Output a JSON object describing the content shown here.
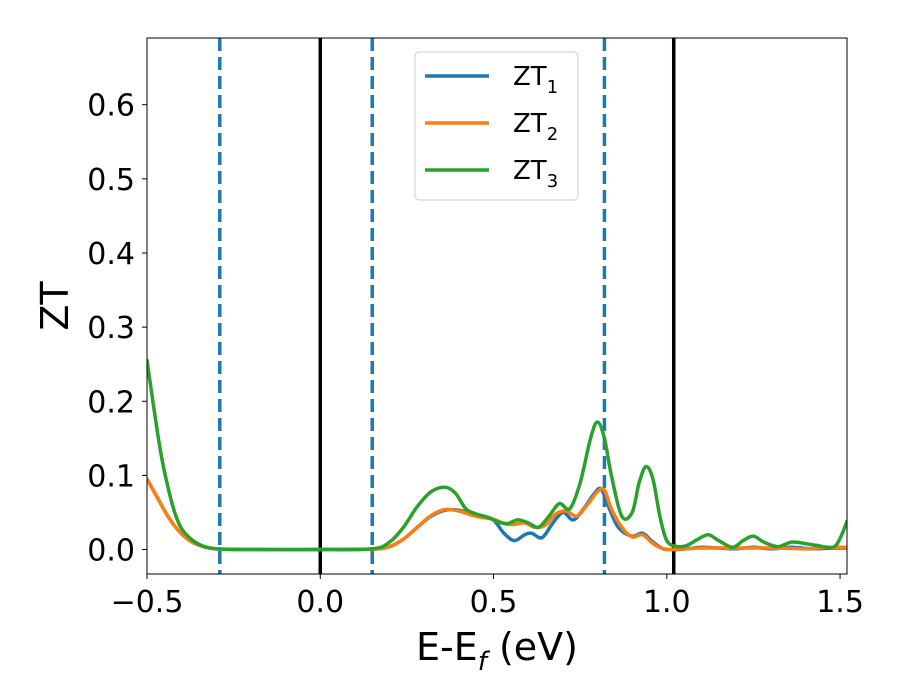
{
  "chart_data": {
    "type": "line",
    "xlabel_main": "E-E",
    "xlabel_sub": "f",
    "xlabel_unit": " (eV)",
    "ylabel": "ZT",
    "xlim": [
      -0.5,
      1.52
    ],
    "ylim": [
      -0.033,
      0.69
    ],
    "x_ticks": [
      -0.5,
      0.0,
      0.5,
      1.0,
      1.5
    ],
    "x_tick_labels": [
      "−0.5",
      "0.0",
      "0.5",
      "1.0",
      "1.5"
    ],
    "y_ticks": [
      0.0,
      0.1,
      0.2,
      0.3,
      0.4,
      0.5,
      0.6
    ],
    "y_tick_labels": [
      "0.0",
      "0.1",
      "0.2",
      "0.3",
      "0.4",
      "0.5",
      "0.6"
    ],
    "grid": false,
    "legend_placement": "top-center",
    "vlines": [
      {
        "x": -0.29,
        "style": "dashed",
        "color": "#1f77b4"
      },
      {
        "x": 0.0,
        "style": "solid",
        "color": "#000000"
      },
      {
        "x": 0.15,
        "style": "dashed",
        "color": "#1f77b4"
      },
      {
        "x": 0.82,
        "style": "dashed",
        "color": "#1f77b4"
      },
      {
        "x": 1.02,
        "style": "solid",
        "color": "#000000"
      }
    ],
    "series": [
      {
        "name_main": "ZT",
        "name_sub": "1",
        "color": "#1f77b4",
        "points": [
          [
            -0.5,
            0.095
          ],
          [
            -0.47,
            0.07
          ],
          [
            -0.44,
            0.045
          ],
          [
            -0.41,
            0.026
          ],
          [
            -0.38,
            0.013
          ],
          [
            -0.35,
            0.006
          ],
          [
            -0.32,
            0.002
          ],
          [
            -0.28,
            0.0005
          ],
          [
            -0.2,
            0.0
          ],
          [
            0.0,
            0.0
          ],
          [
            0.15,
            0.0005
          ],
          [
            0.2,
            0.004
          ],
          [
            0.24,
            0.014
          ],
          [
            0.28,
            0.03
          ],
          [
            0.32,
            0.045
          ],
          [
            0.36,
            0.053
          ],
          [
            0.4,
            0.053
          ],
          [
            0.44,
            0.048
          ],
          [
            0.47,
            0.045
          ],
          [
            0.5,
            0.04
          ],
          [
            0.53,
            0.022
          ],
          [
            0.56,
            0.012
          ],
          [
            0.59,
            0.02
          ],
          [
            0.61,
            0.022
          ],
          [
            0.64,
            0.016
          ],
          [
            0.67,
            0.035
          ],
          [
            0.7,
            0.05
          ],
          [
            0.73,
            0.04
          ],
          [
            0.76,
            0.055
          ],
          [
            0.79,
            0.075
          ],
          [
            0.81,
            0.082
          ],
          [
            0.83,
            0.06
          ],
          [
            0.86,
            0.03
          ],
          [
            0.9,
            0.018
          ],
          [
            0.93,
            0.022
          ],
          [
            0.96,
            0.01
          ],
          [
            0.99,
            0.001
          ],
          [
            1.02,
            0.0
          ],
          [
            1.06,
            0.001
          ],
          [
            1.1,
            0.003
          ],
          [
            1.15,
            0.002
          ],
          [
            1.2,
            0.001
          ],
          [
            1.25,
            0.003
          ],
          [
            1.3,
            0.001
          ],
          [
            1.36,
            0.003
          ],
          [
            1.42,
            0.001
          ],
          [
            1.48,
            0.002
          ],
          [
            1.52,
            0.002
          ]
        ]
      },
      {
        "name_main": "ZT",
        "name_sub": "2",
        "color": "#ff7f0e",
        "points": [
          [
            -0.5,
            0.095
          ],
          [
            -0.47,
            0.07
          ],
          [
            -0.44,
            0.045
          ],
          [
            -0.41,
            0.026
          ],
          [
            -0.38,
            0.013
          ],
          [
            -0.35,
            0.006
          ],
          [
            -0.32,
            0.002
          ],
          [
            -0.28,
            0.0005
          ],
          [
            -0.2,
            0.0
          ],
          [
            0.0,
            0.0
          ],
          [
            0.15,
            0.0005
          ],
          [
            0.2,
            0.004
          ],
          [
            0.24,
            0.014
          ],
          [
            0.28,
            0.03
          ],
          [
            0.32,
            0.046
          ],
          [
            0.36,
            0.054
          ],
          [
            0.4,
            0.052
          ],
          [
            0.44,
            0.046
          ],
          [
            0.47,
            0.043
          ],
          [
            0.5,
            0.041
          ],
          [
            0.53,
            0.035
          ],
          [
            0.56,
            0.034
          ],
          [
            0.59,
            0.036
          ],
          [
            0.62,
            0.03
          ],
          [
            0.65,
            0.033
          ],
          [
            0.68,
            0.048
          ],
          [
            0.71,
            0.052
          ],
          [
            0.74,
            0.045
          ],
          [
            0.77,
            0.06
          ],
          [
            0.8,
            0.078
          ],
          [
            0.82,
            0.08
          ],
          [
            0.84,
            0.055
          ],
          [
            0.87,
            0.03
          ],
          [
            0.9,
            0.017
          ],
          [
            0.93,
            0.02
          ],
          [
            0.96,
            0.008
          ],
          [
            0.99,
            0.001
          ],
          [
            1.02,
            0.0
          ],
          [
            1.1,
            0.002
          ],
          [
            1.2,
            0.002
          ],
          [
            1.3,
            0.002
          ],
          [
            1.4,
            0.001
          ],
          [
            1.46,
            0.003
          ],
          [
            1.52,
            0.003
          ]
        ]
      },
      {
        "name_main": "ZT",
        "name_sub": "3",
        "color": "#2ca02c",
        "points": [
          [
            -0.5,
            0.255
          ],
          [
            -0.48,
            0.19
          ],
          [
            -0.46,
            0.13
          ],
          [
            -0.44,
            0.085
          ],
          [
            -0.42,
            0.05
          ],
          [
            -0.4,
            0.028
          ],
          [
            -0.37,
            0.013
          ],
          [
            -0.34,
            0.005
          ],
          [
            -0.31,
            0.0015
          ],
          [
            -0.28,
            0.0004
          ],
          [
            -0.2,
            0.0
          ],
          [
            0.0,
            0.0
          ],
          [
            0.15,
            0.001
          ],
          [
            0.2,
            0.01
          ],
          [
            0.24,
            0.03
          ],
          [
            0.28,
            0.058
          ],
          [
            0.32,
            0.078
          ],
          [
            0.36,
            0.084
          ],
          [
            0.39,
            0.076
          ],
          [
            0.42,
            0.055
          ],
          [
            0.45,
            0.048
          ],
          [
            0.48,
            0.044
          ],
          [
            0.51,
            0.038
          ],
          [
            0.54,
            0.035
          ],
          [
            0.57,
            0.04
          ],
          [
            0.6,
            0.036
          ],
          [
            0.63,
            0.03
          ],
          [
            0.66,
            0.045
          ],
          [
            0.69,
            0.062
          ],
          [
            0.72,
            0.055
          ],
          [
            0.75,
            0.09
          ],
          [
            0.78,
            0.15
          ],
          [
            0.8,
            0.172
          ],
          [
            0.82,
            0.15
          ],
          [
            0.84,
            0.1
          ],
          [
            0.87,
            0.045
          ],
          [
            0.9,
            0.05
          ],
          [
            0.92,
            0.09
          ],
          [
            0.94,
            0.112
          ],
          [
            0.96,
            0.095
          ],
          [
            0.98,
            0.045
          ],
          [
            1.0,
            0.012
          ],
          [
            1.03,
            0.004
          ],
          [
            1.06,
            0.006
          ],
          [
            1.09,
            0.014
          ],
          [
            1.12,
            0.02
          ],
          [
            1.15,
            0.012
          ],
          [
            1.19,
            0.003
          ],
          [
            1.22,
            0.012
          ],
          [
            1.25,
            0.018
          ],
          [
            1.28,
            0.01
          ],
          [
            1.32,
            0.004
          ],
          [
            1.36,
            0.01
          ],
          [
            1.4,
            0.008
          ],
          [
            1.44,
            0.005
          ],
          [
            1.48,
            0.003
          ],
          [
            1.5,
            0.015
          ],
          [
            1.52,
            0.038
          ]
        ]
      }
    ]
  }
}
